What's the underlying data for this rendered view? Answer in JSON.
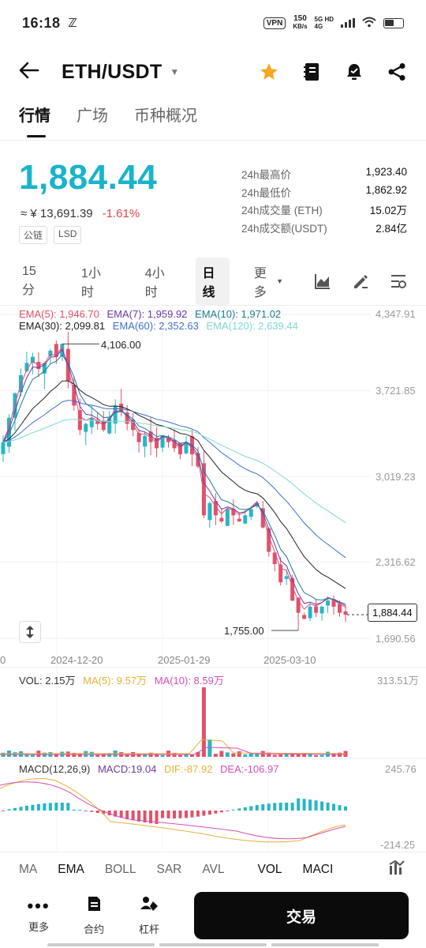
{
  "status": {
    "time": "16:18",
    "vpn": "VPN",
    "speed_value": "150",
    "speed_unit": "KB/s",
    "net_top": "5G HD",
    "net_bottom": "4G"
  },
  "header": {
    "pair": "ETH/USDT"
  },
  "tabs": [
    {
      "label": "行情"
    },
    {
      "label": "广场"
    },
    {
      "label": "币种概况"
    }
  ],
  "price": {
    "last": "1,884.44",
    "fiat": "≈ ¥ 13,691.39",
    "change": "-1.61%",
    "chips": [
      "公链",
      "LSD"
    ]
  },
  "stats": [
    {
      "label": "24h最高价",
      "value": "1,923.40"
    },
    {
      "label": "24h最低价",
      "value": "1,862.92"
    },
    {
      "label": "24h成交量 (ETH)",
      "value": "15.02万"
    },
    {
      "label": "24h成交额(USDT)",
      "value": "2.84亿"
    }
  ],
  "intervals": {
    "items": [
      "15分",
      "1小时",
      "4小时",
      "日线"
    ],
    "more": "更多"
  },
  "ema_legend": {
    "ema5": "EMA(5): 1,946.70",
    "ema7": "EMA(7): 1,959.92",
    "ema10": "EMA(10): 1,971.02",
    "ema30": "EMA(30): 2,099.81",
    "ema60": "EMA(60): 2,352.63",
    "ema120": "EMA(120): 2,639.44"
  },
  "price_axis": [
    "4,347.91",
    "3,721.85",
    "3,019.23",
    "2,316.62",
    "1,690.56"
  ],
  "date_axis": [
    "0",
    "2024-12-20",
    "2025-01-29",
    "2025-03-10"
  ],
  "annotations": {
    "high": "4,106.00",
    "low": "1,755.00",
    "current": "1,884.44"
  },
  "vol_legend": {
    "vol": "VOL: 2.15万",
    "ma5": "MA(5): 9.57万",
    "ma10": "MA(10): 8.59万",
    "axis": "313.51万"
  },
  "macd_legend": {
    "name": "MACD(12,26,9)",
    "macd": "MACD:19.04",
    "dif": "DIF:-87.92",
    "dea": "DEA:-106.97",
    "axis_top": "245.76",
    "axis_bottom": "-214.25"
  },
  "indicators": [
    "MA",
    "EMA",
    "BOLL",
    "SAR",
    "AVL",
    "VOL",
    "MACI"
  ],
  "bottom": {
    "more": "更多",
    "contract": "合约",
    "leverage": "杠杆",
    "trade": "交易"
  },
  "colors": {
    "up": "#26b6c4",
    "down": "#e2506a",
    "ema5": "#e2506a",
    "ema7": "#6a3aa8",
    "ema10": "#1a7d94",
    "ema30": "#222222",
    "ema60": "#3f6fd0",
    "ema120": "#7fd8d2",
    "accent": "#1ab4c9"
  },
  "chart_data": {
    "type": "candlestick",
    "title": "",
    "xlabel": "",
    "ylabel": "",
    "x": [
      "2024-12-20",
      "2025-01-29",
      "2025-03-10"
    ],
    "ylim": [
      1690.56,
      4347.91
    ],
    "price_ticks": [
      4347.91,
      3721.85,
      3019.23,
      2316.62,
      1690.56
    ],
    "high": 4106.0,
    "low": 1755.0,
    "last": 1884.44,
    "close_path": [
      3300,
      3500,
      3700,
      3850,
      3950,
      4000,
      3900,
      3950,
      4050,
      4000,
      4106,
      3800,
      3600,
      3400,
      3450,
      3500,
      3450,
      3400,
      3500,
      3600,
      3550,
      3450,
      3400,
      3300,
      3350,
      3300,
      3250,
      3350,
      3300,
      3250,
      3200,
      3300,
      3200,
      3100,
      2700,
      2800,
      2700,
      2650,
      2750,
      2700,
      2650,
      2700,
      2750,
      2800,
      2600,
      2400,
      2300,
      2150,
      2200,
      2000,
      1900,
      1850,
      1950,
      1900,
      1950,
      2000,
      1950,
      1900,
      1884.44
    ],
    "series": [
      {
        "name": "EMA(5)",
        "last": 1946.7
      },
      {
        "name": "EMA(7)",
        "last": 1959.92
      },
      {
        "name": "EMA(10)",
        "last": 1971.02
      },
      {
        "name": "EMA(30)",
        "last": 2099.81
      },
      {
        "name": "EMA(60)",
        "last": 2352.63
      },
      {
        "name": "EMA(120)",
        "last": 2639.44
      }
    ]
  }
}
